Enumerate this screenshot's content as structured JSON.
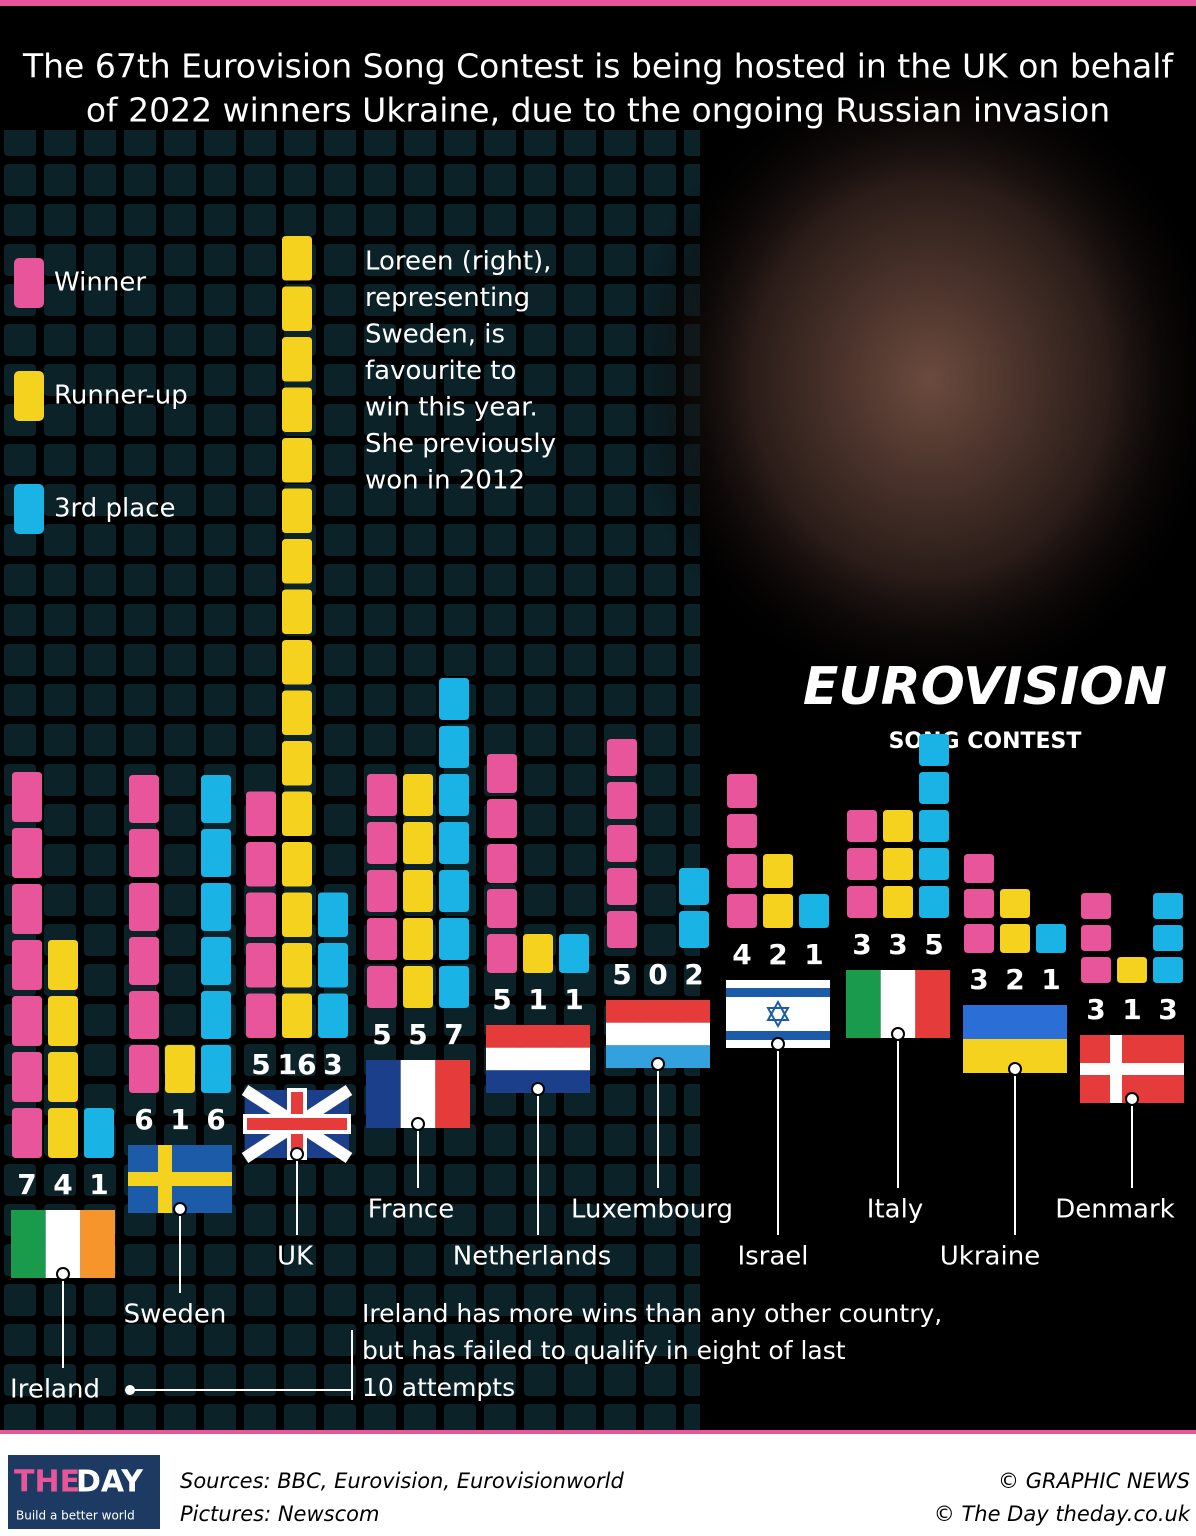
{
  "chart_data": {
    "type": "bar",
    "title": [
      "The 67th Eurovision Song Contest is being hosted in the UK on behalf",
      "of 2022 winners Ukraine, due to the ongoing Russian invasion"
    ],
    "categories": [
      "Ireland",
      "Sweden",
      "UK",
      "France",
      "Netherlands",
      "Luxembourg",
      "Israel",
      "Italy",
      "Ukraine",
      "Denmark"
    ],
    "series": [
      {
        "name": "Winner",
        "color": "#e9559a",
        "values": [
          7,
          6,
          5,
          5,
          5,
          5,
          4,
          3,
          3,
          3
        ]
      },
      {
        "name": "Runner-up",
        "color": "#f5d21d",
        "values": [
          4,
          1,
          16,
          5,
          1,
          0,
          2,
          3,
          2,
          1
        ]
      },
      {
        "name": "3rd place",
        "color": "#1ab3e6",
        "values": [
          1,
          6,
          3,
          7,
          1,
          2,
          1,
          5,
          1,
          3
        ]
      }
    ],
    "annotation": [
      "Loreen (right),",
      "representing",
      "Sweden, is",
      "favourite to",
      "win this year.",
      "She previously",
      "won in 2012"
    ],
    "note": [
      "Ireland has more wins than any other country,",
      "but has failed to qualify in eight of last",
      "10 attempts"
    ],
    "logo": {
      "name": "EUROVISION",
      "subtitle": "SONG CONTEST"
    }
  },
  "footer": {
    "brand_the": "THE",
    "brand_day": "DAY",
    "tagline": "Build a better world",
    "sources": "Sources:  BBC, Eurovision, Eurovisionworld",
    "pictures": "Pictures: Newscom",
    "credit": "© GRAPHIC NEWS",
    "site": "© The Day   theday.co.uk"
  }
}
